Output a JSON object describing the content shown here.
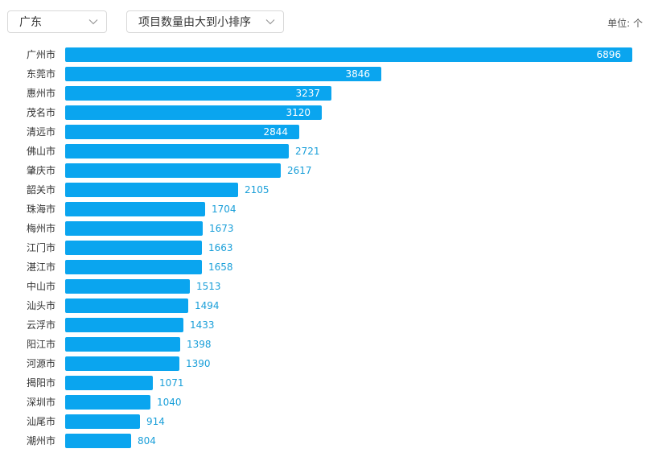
{
  "filters": {
    "region": "广东",
    "sort": "项目数量由大到小排序"
  },
  "unit": {
    "label": "单位:",
    "value": "个"
  },
  "colors": {
    "bar": "#0aa5ef",
    "label_outside": "#1a9fd9",
    "label_inside": "#ffffff"
  },
  "chart_data": {
    "type": "bar",
    "orientation": "horizontal",
    "title": "",
    "xlabel": "",
    "ylabel": "",
    "categories": [
      "广州市",
      "东莞市",
      "惠州市",
      "茂名市",
      "清远市",
      "佛山市",
      "肇庆市",
      "韶关市",
      "珠海市",
      "梅州市",
      "江门市",
      "湛江市",
      "中山市",
      "汕头市",
      "云浮市",
      "阳江市",
      "河源市",
      "揭阳市",
      "深圳市",
      "汕尾市",
      "潮州市"
    ],
    "values": [
      6896,
      3846,
      3237,
      3120,
      2844,
      2721,
      2617,
      2105,
      1704,
      1673,
      1663,
      1658,
      1513,
      1494,
      1433,
      1398,
      1390,
      1071,
      1040,
      914,
      804
    ],
    "xlim": [
      0,
      6896
    ],
    "grid": false,
    "legend": "none",
    "data_labels": true
  }
}
